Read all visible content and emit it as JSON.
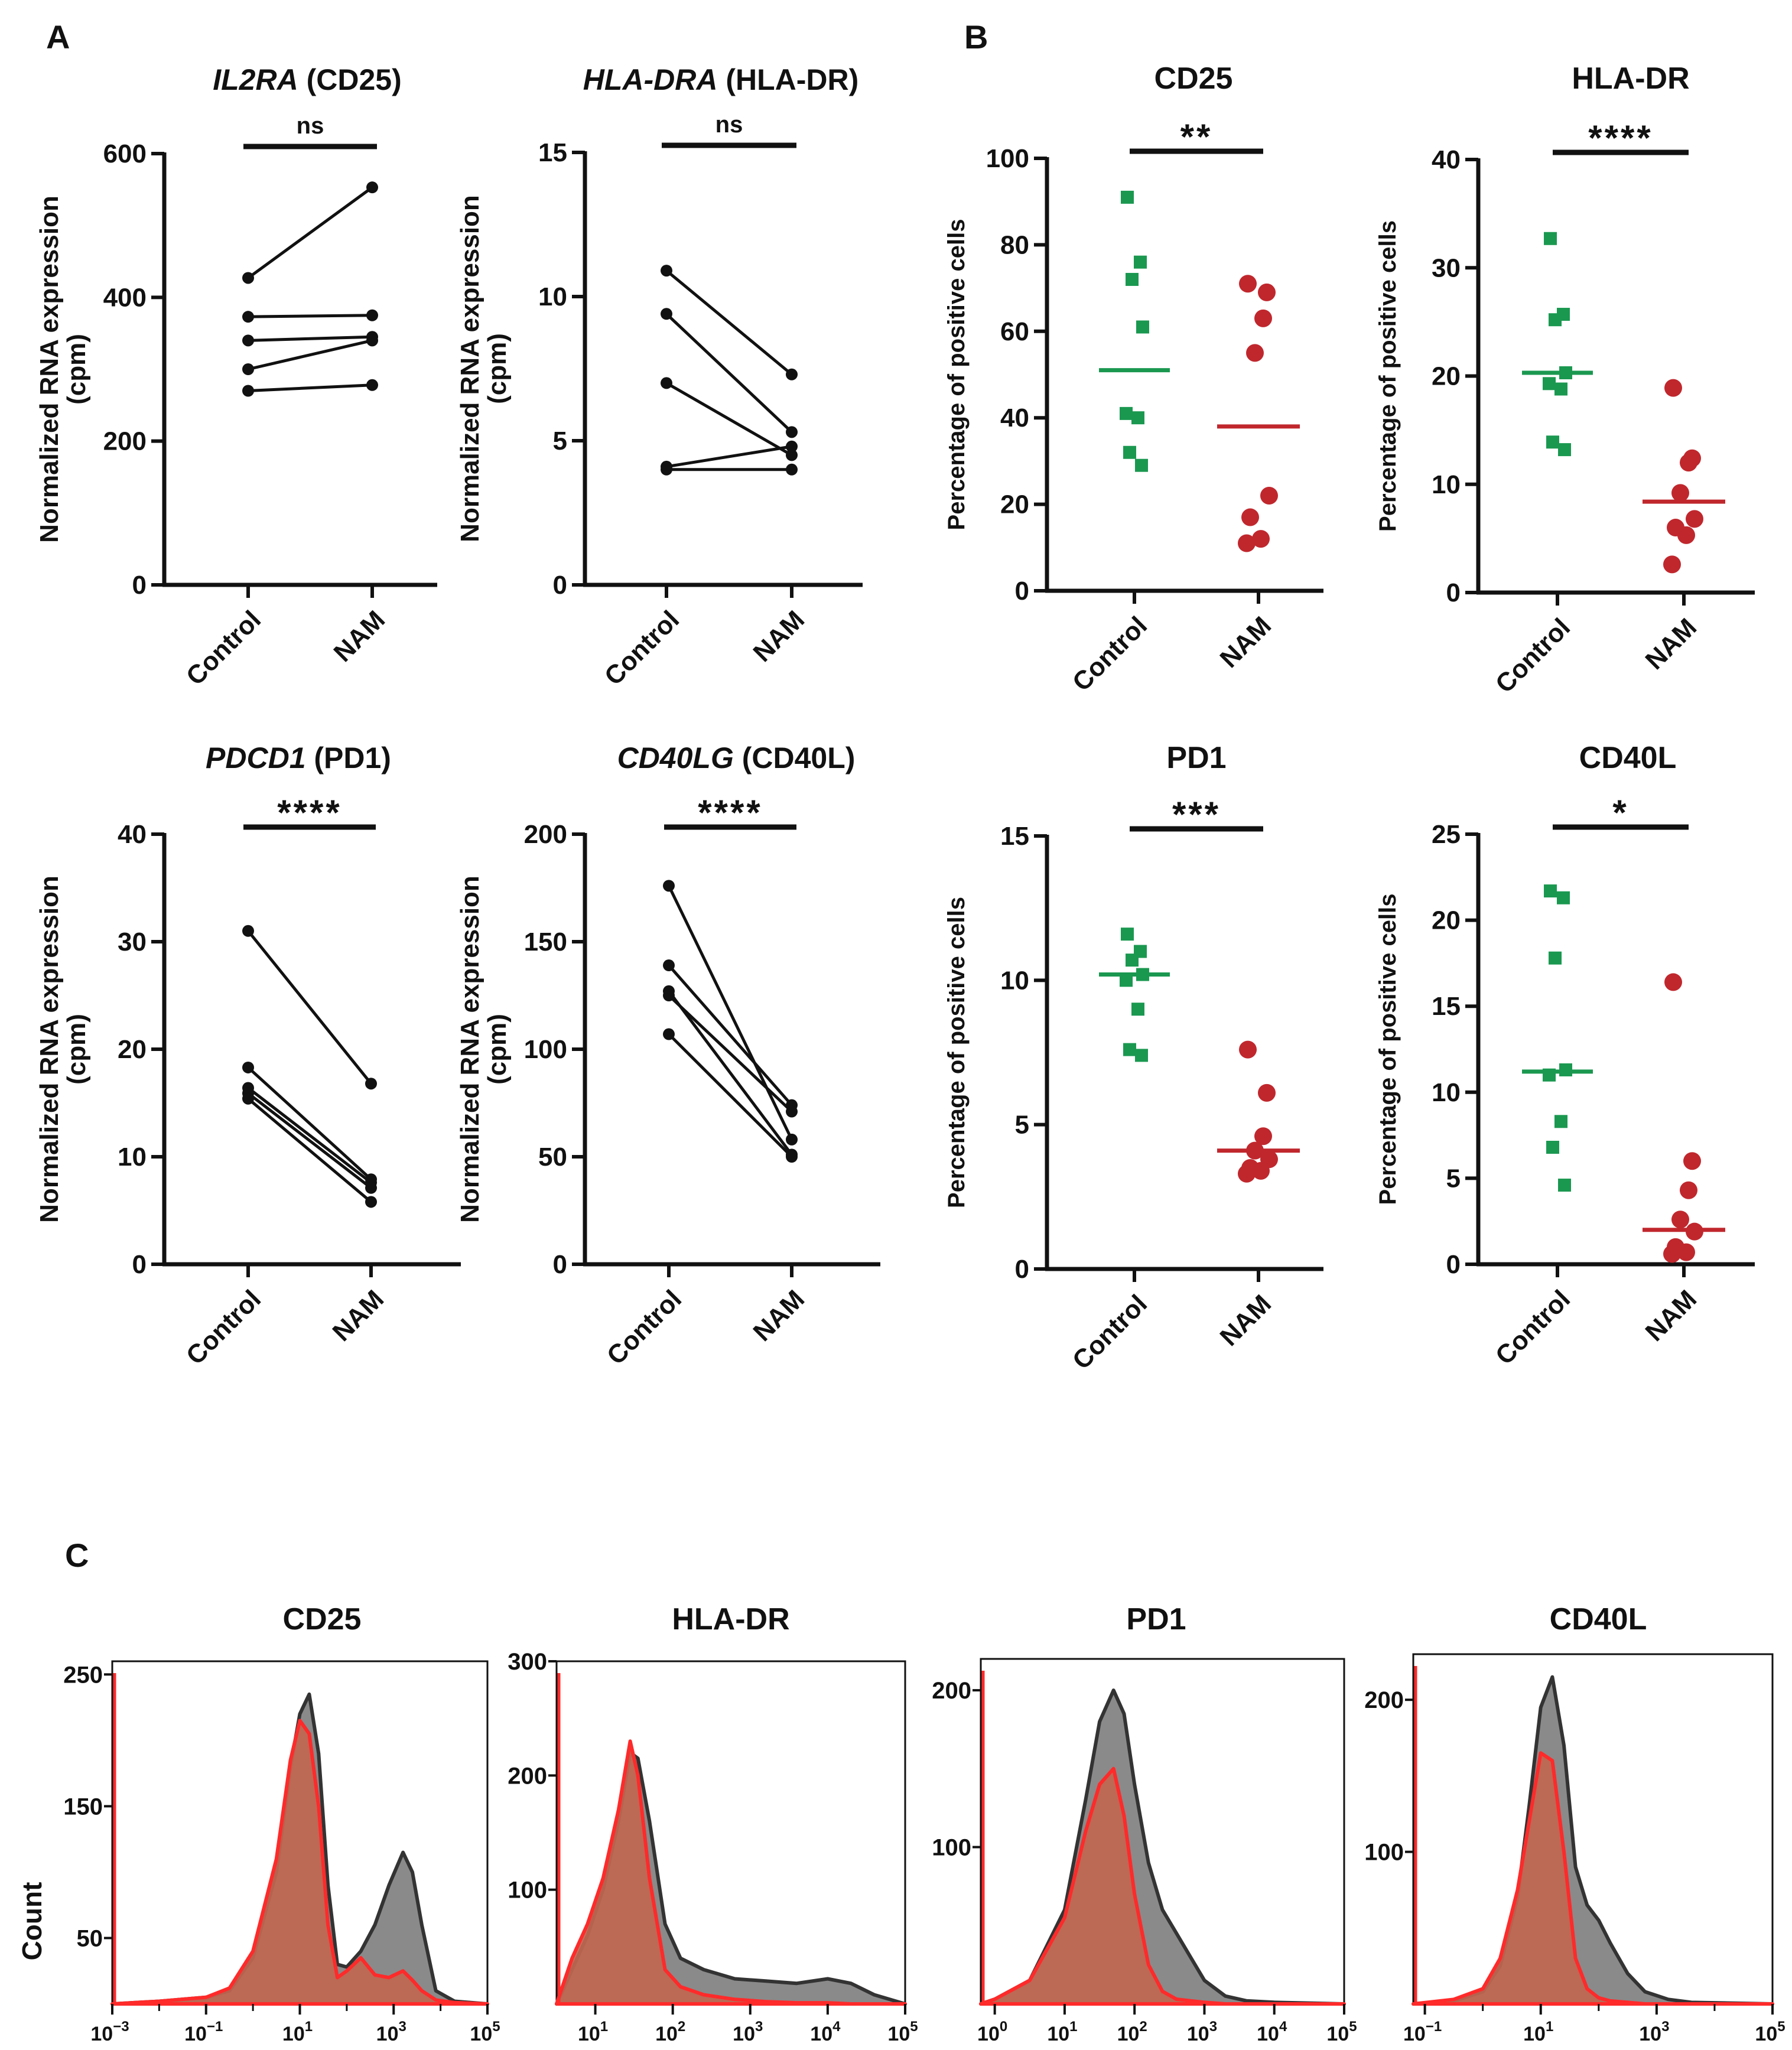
{
  "panel_letters": {
    "a": "A",
    "b": "B",
    "c": "C"
  },
  "colors": {
    "control": "#1a9850",
    "nam": "#c0272d",
    "axis": "#111111",
    "hist_gray": "#8a8a8a",
    "hist_red": "#ff2a2a",
    "hist_red_fill": "#c06650"
  },
  "chart_data": [
    {
      "id": "a-il2ra",
      "type": "line-paired",
      "panel": "A",
      "title_italic": "IL2RA",
      "title_rest": "(CD25)",
      "ylabel": "Normalized RNA expression",
      "ylabel2": "(cpm)",
      "categories": [
        "Control",
        "NAM"
      ],
      "ylim": [
        0,
        600
      ],
      "yticks": [
        "0",
        "200",
        "400",
        "600"
      ],
      "pairs": [
        [
          427,
          553
        ],
        [
          373,
          375
        ],
        [
          340,
          345
        ],
        [
          300,
          340
        ],
        [
          270,
          278
        ]
      ],
      "significance": "ns"
    },
    {
      "id": "a-hladra",
      "type": "line-paired",
      "panel": "A",
      "title_italic": "HLA-DRA",
      "title_rest": "(HLA-DR)",
      "ylabel": "Normalized RNA expression",
      "ylabel2": "(cpm)",
      "categories": [
        "Control",
        "NAM"
      ],
      "ylim": [
        0,
        15
      ],
      "yticks": [
        "0",
        "5",
        "10",
        "15"
      ],
      "pairs": [
        [
          10.9,
          7.3
        ],
        [
          9.4,
          5.3
        ],
        [
          7.0,
          4.5
        ],
        [
          4.1,
          4.8
        ],
        [
          4.0,
          4.0
        ]
      ],
      "significance": "ns"
    },
    {
      "id": "a-pdcd1",
      "type": "line-paired",
      "panel": "A",
      "title_italic": "PDCD1",
      "title_rest": "(PD1)",
      "ylabel": "Normalized RNA expression",
      "ylabel2": "(cpm)",
      "categories": [
        "Control",
        "NAM"
      ],
      "ylim": [
        0,
        40
      ],
      "yticks": [
        "0",
        "10",
        "20",
        "30",
        "40"
      ],
      "pairs": [
        [
          31.0,
          16.8
        ],
        [
          18.3,
          7.9
        ],
        [
          16.4,
          7.6
        ],
        [
          15.9,
          7.1
        ],
        [
          15.4,
          5.8
        ]
      ],
      "significance": "****"
    },
    {
      "id": "a-cd40lg",
      "type": "line-paired",
      "panel": "A",
      "title_italic": "CD40LG",
      "title_rest": "(CD40L)",
      "ylabel": "Normalized RNA expression",
      "ylabel2": "(cpm)",
      "categories": [
        "Control",
        "NAM"
      ],
      "ylim": [
        0,
        200
      ],
      "yticks": [
        "0",
        "50",
        "100",
        "150",
        "200"
      ],
      "pairs": [
        [
          176,
          58
        ],
        [
          139,
          74
        ],
        [
          127,
          51
        ],
        [
          125,
          71
        ],
        [
          107,
          50
        ]
      ],
      "significance": "****"
    },
    {
      "id": "b-cd25",
      "type": "scatter",
      "panel": "B",
      "title": "CD25",
      "ylabel": "Percentage of positive cells",
      "categories": [
        "Control",
        "NAM"
      ],
      "ylim": [
        0,
        100
      ],
      "yticks": [
        "0",
        "20",
        "40",
        "60",
        "80",
        "100"
      ],
      "control": [
        91,
        76,
        72,
        61,
        41,
        40,
        32,
        29
      ],
      "nam": [
        71,
        69,
        63,
        55,
        22,
        17,
        12,
        11
      ],
      "means": [
        51,
        38
      ],
      "significance": "**"
    },
    {
      "id": "b-hladr",
      "type": "scatter",
      "panel": "B",
      "title": "HLA-DR",
      "ylabel": "Percentage of positive cells",
      "categories": [
        "Control",
        "NAM"
      ],
      "ylim": [
        0,
        40
      ],
      "yticks": [
        "0",
        "10",
        "20",
        "30",
        "40"
      ],
      "control": [
        32.7,
        25.7,
        25.2,
        20.3,
        19.3,
        18.8,
        13.9,
        13.2
      ],
      "nam": [
        18.9,
        12.4,
        12.0,
        9.2,
        6.8,
        6.0,
        5.3,
        2.6
      ],
      "means": [
        20.3,
        8.4
      ],
      "significance": "****"
    },
    {
      "id": "b-pd1",
      "type": "scatter",
      "panel": "B",
      "title": "PD1",
      "ylabel": "Percentage of positive cells",
      "categories": [
        "Control",
        "NAM"
      ],
      "ylim": [
        0,
        15
      ],
      "yticks": [
        "0",
        "5",
        "10",
        "15"
      ],
      "control": [
        11.6,
        11.0,
        10.7,
        10.2,
        10.0,
        9.0,
        7.6,
        7.4
      ],
      "nam": [
        7.6,
        6.1,
        4.6,
        4.1,
        3.8,
        3.5,
        3.4,
        3.3
      ],
      "means": [
        10.2,
        4.1
      ],
      "significance": "***"
    },
    {
      "id": "b-cd40l",
      "type": "scatter",
      "panel": "B",
      "title": "CD40L",
      "ylabel": "Percentage of positive cells",
      "categories": [
        "Control",
        "NAM"
      ],
      "ylim": [
        0,
        25
      ],
      "yticks": [
        "0",
        "5",
        "10",
        "15",
        "20",
        "25"
      ],
      "control": [
        21.7,
        21.3,
        17.8,
        11.3,
        11.0,
        8.3,
        6.8,
        4.6
      ],
      "nam": [
        16.4,
        6.0,
        4.3,
        2.6,
        1.9,
        1.0,
        0.7,
        0.6
      ],
      "means": [
        11.2,
        2.0
      ],
      "significance": "*"
    },
    {
      "id": "c-cd25",
      "type": "area",
      "panel": "C",
      "title": "CD25",
      "ylabel": "Count",
      "xlim": [
        -3,
        5
      ],
      "xticks": [
        -3,
        -1,
        1,
        3,
        5
      ],
      "ylim": [
        0,
        260
      ],
      "yticks": [
        "50",
        "150",
        "250"
      ],
      "series": [
        {
          "name": "gray",
          "x": [
            -3,
            -2,
            -1,
            -0.5,
            0,
            0.5,
            0.8,
            1.0,
            1.2,
            1.4,
            1.6,
            1.8,
            2.0,
            2.3,
            2.6,
            2.9,
            3.2,
            3.4,
            3.6,
            3.9,
            4.3,
            5
          ],
          "values": [
            0,
            2,
            5,
            10,
            35,
            100,
            180,
            220,
            235,
            190,
            90,
            30,
            28,
            40,
            60,
            90,
            115,
            100,
            60,
            10,
            2,
            0
          ]
        },
        {
          "name": "red",
          "x": [
            -3,
            -2,
            -1,
            -0.5,
            0,
            0.5,
            0.8,
            1.0,
            1.2,
            1.4,
            1.6,
            1.8,
            2.0,
            2.3,
            2.6,
            2.9,
            3.2,
            3.4,
            3.6,
            3.9,
            4.3,
            5
          ],
          "values": [
            0,
            2,
            5,
            12,
            40,
            110,
            185,
            215,
            205,
            150,
            60,
            20,
            25,
            35,
            22,
            20,
            25,
            18,
            10,
            3,
            1,
            0
          ]
        }
      ]
    },
    {
      "id": "c-hladr",
      "type": "area",
      "panel": "C",
      "title": "HLA-DR",
      "ylabel": "",
      "xlim": [
        0.5,
        5
      ],
      "xticks": [
        1,
        2,
        3,
        4,
        5
      ],
      "ylim": [
        0,
        300
      ],
      "yticks": [
        "100",
        "200",
        "300"
      ],
      "series": [
        {
          "name": "gray",
          "x": [
            0.5,
            0.7,
            0.9,
            1.1,
            1.3,
            1.45,
            1.55,
            1.7,
            1.9,
            2.1,
            2.4,
            2.8,
            3.2,
            3.6,
            4.0,
            4.3,
            4.6,
            4.9,
            5
          ],
          "values": [
            0,
            30,
            60,
            100,
            160,
            220,
            215,
            160,
            70,
            40,
            30,
            22,
            20,
            18,
            22,
            18,
            8,
            2,
            0
          ]
        },
        {
          "name": "red",
          "x": [
            0.5,
            0.7,
            0.9,
            1.1,
            1.3,
            1.45,
            1.55,
            1.7,
            1.9,
            2.1,
            2.4,
            2.8,
            3.2,
            3.6,
            4.0,
            4.3,
            4.6,
            4.9,
            5
          ],
          "values": [
            0,
            40,
            70,
            110,
            170,
            230,
            200,
            110,
            30,
            15,
            8,
            4,
            2,
            1,
            1,
            0,
            0,
            0,
            0
          ]
        }
      ]
    },
    {
      "id": "c-pd1",
      "type": "area",
      "panel": "C",
      "title": "PD1",
      "ylabel": "",
      "xlim": [
        -0.2,
        5
      ],
      "xticks": [
        0,
        1,
        2,
        3,
        4,
        5
      ],
      "ylim": [
        0,
        220
      ],
      "yticks": [
        "100",
        "200"
      ],
      "series": [
        {
          "name": "gray",
          "x": [
            -0.2,
            0,
            0.5,
            1.0,
            1.3,
            1.5,
            1.7,
            1.85,
            2.0,
            2.2,
            2.4,
            2.6,
            2.8,
            3.0,
            3.3,
            3.6,
            4.0,
            5
          ],
          "values": [
            0,
            3,
            15,
            60,
            130,
            180,
            200,
            185,
            140,
            90,
            60,
            45,
            30,
            15,
            5,
            2,
            1,
            0
          ]
        },
        {
          "name": "red",
          "x": [
            -0.2,
            0,
            0.5,
            1.0,
            1.3,
            1.5,
            1.7,
            1.85,
            2.0,
            2.2,
            2.4,
            2.6,
            2.8,
            3.0,
            3.3,
            3.6,
            4.0,
            5
          ],
          "values": [
            0,
            3,
            15,
            55,
            110,
            140,
            150,
            120,
            70,
            25,
            8,
            3,
            2,
            1,
            0,
            0,
            0,
            0
          ]
        }
      ]
    },
    {
      "id": "c-cd40l",
      "type": "area",
      "panel": "C",
      "title": "CD40L",
      "ylabel": "",
      "xlim": [
        -1.2,
        5
      ],
      "xticks": [
        -1,
        1,
        3,
        5
      ],
      "ylim": [
        0,
        230
      ],
      "yticks": [
        "100",
        "200"
      ],
      "series": [
        {
          "name": "gray",
          "x": [
            -1.2,
            -0.5,
            0,
            0.3,
            0.6,
            0.8,
            1.0,
            1.2,
            1.4,
            1.6,
            1.8,
            2.0,
            2.2,
            2.5,
            2.8,
            3.2,
            3.6,
            5
          ],
          "values": [
            0,
            2,
            8,
            25,
            70,
            130,
            195,
            215,
            170,
            90,
            65,
            55,
            40,
            20,
            8,
            3,
            1,
            0
          ]
        },
        {
          "name": "red",
          "x": [
            -1.2,
            -0.5,
            0,
            0.3,
            0.6,
            0.8,
            1.0,
            1.2,
            1.4,
            1.6,
            1.8,
            2.0,
            2.2,
            2.5,
            2.8,
            3.2,
            3.6,
            5
          ],
          "values": [
            0,
            3,
            10,
            30,
            75,
            120,
            165,
            160,
            100,
            30,
            10,
            4,
            2,
            1,
            0,
            0,
            0,
            0
          ]
        }
      ]
    }
  ]
}
